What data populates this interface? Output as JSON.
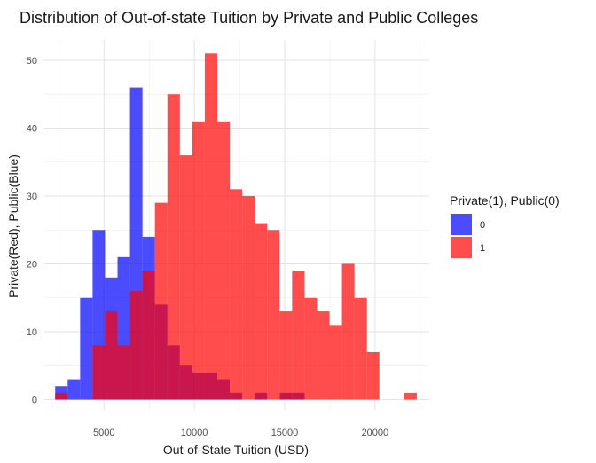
{
  "chart_data": {
    "type": "histogram",
    "title": "Distribution of Out-of-state Tuition by Private and Public Colleges",
    "xlabel": "Out-of-State Tuition (USD)",
    "ylabel": "Private(Red), Public(Blue)",
    "xlim": [
      1700,
      23000
    ],
    "ylim": [
      -1.5,
      53
    ],
    "x_ticks": [
      5000,
      10000,
      15000,
      20000
    ],
    "y_ticks": [
      0,
      10,
      20,
      30,
      40,
      50
    ],
    "x_tick_labels": [
      "5000",
      "10000",
      "15000",
      "20000"
    ],
    "y_tick_labels": [
      "0",
      "10",
      "20",
      "30",
      "40",
      "50"
    ],
    "grid": true,
    "bin_width": 690,
    "legend": {
      "title": "Private(1), Public(0)",
      "placement": "right",
      "entries": [
        {
          "label": "0",
          "color": "#0000ff"
        },
        {
          "label": "1",
          "color": "#ff0000"
        }
      ]
    },
    "series": [
      {
        "name": "0",
        "color": "#0000ff",
        "opacity": 0.7,
        "bins": [
          {
            "x0": 2300,
            "x1": 2990,
            "count": 2
          },
          {
            "x0": 2990,
            "x1": 3680,
            "count": 3
          },
          {
            "x0": 3680,
            "x1": 4370,
            "count": 15
          },
          {
            "x0": 4370,
            "x1": 5060,
            "count": 25
          },
          {
            "x0": 5060,
            "x1": 5750,
            "count": 18
          },
          {
            "x0": 5750,
            "x1": 6440,
            "count": 21
          },
          {
            "x0": 6440,
            "x1": 7130,
            "count": 46
          },
          {
            "x0": 7130,
            "x1": 7820,
            "count": 24
          },
          {
            "x0": 7820,
            "x1": 8510,
            "count": 14
          },
          {
            "x0": 8510,
            "x1": 9200,
            "count": 8
          },
          {
            "x0": 9200,
            "x1": 9890,
            "count": 5
          },
          {
            "x0": 9890,
            "x1": 10580,
            "count": 4
          },
          {
            "x0": 10580,
            "x1": 11270,
            "count": 4
          },
          {
            "x0": 11270,
            "x1": 11960,
            "count": 3
          },
          {
            "x0": 11960,
            "x1": 12650,
            "count": 1
          },
          {
            "x0": 12650,
            "x1": 13340,
            "count": 0
          },
          {
            "x0": 13340,
            "x1": 14030,
            "count": 1
          },
          {
            "x0": 14030,
            "x1": 14720,
            "count": 0
          },
          {
            "x0": 14720,
            "x1": 15410,
            "count": 1
          },
          {
            "x0": 15410,
            "x1": 16100,
            "count": 1
          }
        ]
      },
      {
        "name": "1",
        "color": "#ff0000",
        "opacity": 0.7,
        "bins": [
          {
            "x0": 2300,
            "x1": 2990,
            "count": 1
          },
          {
            "x0": 2990,
            "x1": 3680,
            "count": 0
          },
          {
            "x0": 3680,
            "x1": 4370,
            "count": 0
          },
          {
            "x0": 4370,
            "x1": 5060,
            "count": 8
          },
          {
            "x0": 5060,
            "x1": 5750,
            "count": 13
          },
          {
            "x0": 5750,
            "x1": 6440,
            "count": 8
          },
          {
            "x0": 6440,
            "x1": 7130,
            "count": 16
          },
          {
            "x0": 7130,
            "x1": 7820,
            "count": 19
          },
          {
            "x0": 7820,
            "x1": 8510,
            "count": 29
          },
          {
            "x0": 8510,
            "x1": 9200,
            "count": 45
          },
          {
            "x0": 9200,
            "x1": 9890,
            "count": 36
          },
          {
            "x0": 9890,
            "x1": 10580,
            "count": 41
          },
          {
            "x0": 10580,
            "x1": 11270,
            "count": 51
          },
          {
            "x0": 11270,
            "x1": 11960,
            "count": 41
          },
          {
            "x0": 11960,
            "x1": 12650,
            "count": 31
          },
          {
            "x0": 12650,
            "x1": 13340,
            "count": 30
          },
          {
            "x0": 13340,
            "x1": 14030,
            "count": 26
          },
          {
            "x0": 14030,
            "x1": 14720,
            "count": 25
          },
          {
            "x0": 14720,
            "x1": 15410,
            "count": 13
          },
          {
            "x0": 15410,
            "x1": 16100,
            "count": 19
          },
          {
            "x0": 16100,
            "x1": 16790,
            "count": 15
          },
          {
            "x0": 16790,
            "x1": 17480,
            "count": 13
          },
          {
            "x0": 17480,
            "x1": 18170,
            "count": 11
          },
          {
            "x0": 18170,
            "x1": 18860,
            "count": 20
          },
          {
            "x0": 18860,
            "x1": 19550,
            "count": 15
          },
          {
            "x0": 19550,
            "x1": 20240,
            "count": 7
          },
          {
            "x0": 20240,
            "x1": 20930,
            "count": 0
          },
          {
            "x0": 20930,
            "x1": 21620,
            "count": 0
          },
          {
            "x0": 21620,
            "x1": 22310,
            "count": 1
          }
        ]
      }
    ]
  }
}
